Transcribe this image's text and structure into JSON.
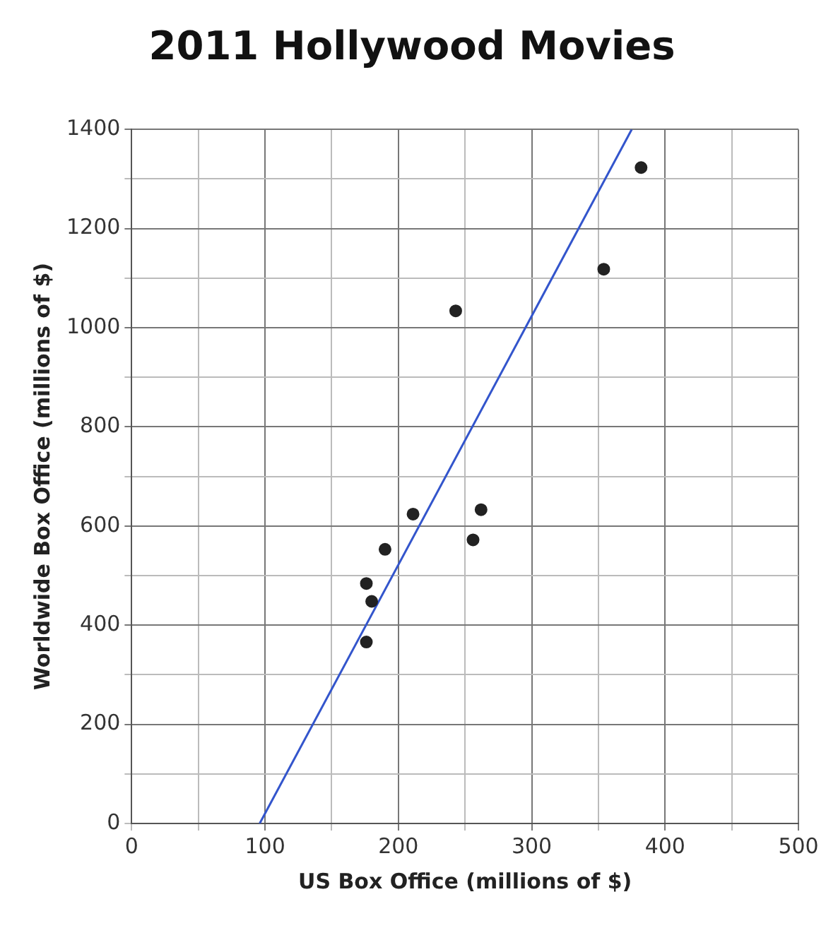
{
  "chart_data": {
    "type": "scatter",
    "title": "2011 Hollywood Movies",
    "xlabel": "US Box Office (millions of $)",
    "ylabel": "Worldwide Box Office (millions of $)",
    "xlim": [
      0,
      500
    ],
    "ylim": [
      0,
      1400
    ],
    "xticks": [
      0,
      {
        "value": 50,
        "label": null
      },
      100,
      {
        "value": 150,
        "label": null
      },
      200,
      {
        "value": 250,
        "label": null
      },
      300,
      {
        "value": 350,
        "label": null
      },
      400,
      {
        "value": 450,
        "label": null
      },
      500
    ],
    "yticks": [
      0,
      {
        "value": 100,
        "label": null
      },
      200,
      {
        "value": 300,
        "label": null
      },
      400,
      {
        "value": 500,
        "label": null
      },
      600,
      {
        "value": 700,
        "label": null
      },
      800,
      {
        "value": 900,
        "label": null
      },
      1000,
      {
        "value": 1100,
        "label": null
      },
      1200,
      {
        "value": 1300,
        "label": null
      },
      1400
    ],
    "grid": true,
    "legend": false,
    "marker": "circle",
    "series": [
      {
        "color": "#222222",
        "x": [
          382,
          354,
          243,
          211,
          262,
          256,
          190,
          176,
          180,
          176
        ],
        "values": [
          1323,
          1118,
          1034,
          624,
          633,
          572,
          553,
          484,
          448,
          366
        ]
      },
      {
        "type": "line",
        "color": "#3355cc",
        "marker": "none",
        "line_style": "solid",
        "x": [
          96,
          375
        ],
        "values": [
          0,
          1400
        ]
      }
    ]
  }
}
